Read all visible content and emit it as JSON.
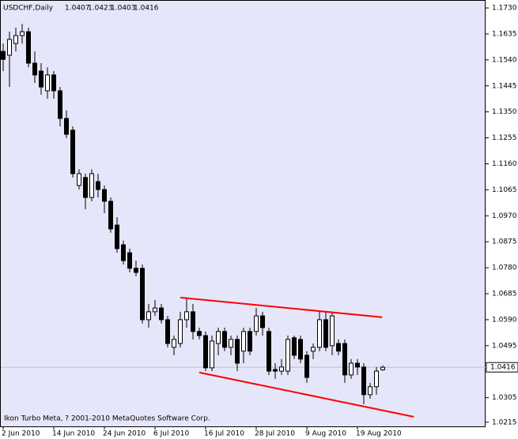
{
  "chart_data": {
    "type": "candlestick",
    "title": "USDCHF,Daily",
    "header_values": [
      1.0407,
      1.0423,
      1.0403,
      1.0416
    ],
    "footer": "Ikon Turbo Meta, ? 2001-2010 MetaQuotes Software Corp.",
    "categories": [
      "2 Jun 2010",
      null,
      null,
      null,
      null,
      null,
      null,
      null,
      "14 Jun 2010",
      null,
      null,
      null,
      null,
      null,
      null,
      null,
      "24 Jun 2010",
      null,
      null,
      null,
      null,
      null,
      null,
      null,
      "6 Jul 2010",
      null,
      null,
      null,
      null,
      null,
      null,
      null,
      "16 Jul 2010",
      null,
      null,
      null,
      null,
      null,
      null,
      null,
      "28 Jul 2010",
      null,
      null,
      null,
      null,
      null,
      null,
      null,
      "9 Aug 2010",
      null,
      null,
      null,
      null,
      null,
      null,
      null,
      "19 Aug 2010",
      null,
      null,
      null,
      null
    ],
    "open": [
      1.1571,
      1.1557,
      1.16,
      1.1629,
      1.1643,
      1.1528,
      1.1499,
      1.1427,
      1.1485,
      1.1427,
      1.1326,
      1.1283,
      1.1081,
      1.111,
      1.1037,
      1.1095,
      1.1066,
      1.1023,
      1.0936,
      1.0864,
      1.0835,
      1.0778,
      1.0778,
      1.059,
      1.0619,
      1.0633,
      1.059,
      1.0489,
      1.0503,
      1.059,
      1.0619,
      1.0547,
      1.0532,
      1.0414,
      1.0503,
      1.0547,
      1.0489,
      1.0518,
      1.0475,
      1.0547,
      1.0547,
      1.0604,
      1.0547,
      1.0408,
      1.0402,
      1.0402,
      1.0524,
      1.0518,
      1.046,
      1.0475,
      1.0489,
      1.059,
      1.0495,
      1.0503,
      1.0503,
      1.0388,
      1.0431,
      1.0417,
      1.0316,
      1.0345,
      1.0407
    ],
    "high": [
      1.16,
      1.1643,
      1.1658,
      1.1672,
      1.1658,
      1.1571,
      1.1528,
      1.1513,
      1.1499,
      1.1441,
      1.1355,
      1.1297,
      1.114,
      1.1124,
      1.114,
      1.1124,
      1.1081,
      1.1037,
      1.0965,
      1.0879,
      1.085,
      1.0806,
      1.0792,
      1.0648,
      1.0662,
      1.0648,
      1.0604,
      1.0532,
      1.0619,
      1.0671,
      1.0648,
      1.0561,
      1.0547,
      1.0532,
      1.0561,
      1.0561,
      1.0532,
      1.0532,
      1.0561,
      1.0561,
      1.0633,
      1.0619,
      1.0561,
      1.0431,
      1.0446,
      1.0532,
      1.0532,
      1.0532,
      1.0475,
      1.0503,
      1.0619,
      1.0619,
      1.0619,
      1.0518,
      1.0518,
      1.0446,
      1.0446,
      1.0431,
      1.0359,
      1.0417,
      1.0423
    ],
    "low": [
      1.1499,
      1.1441,
      1.1571,
      1.16,
      1.1513,
      1.1456,
      1.1413,
      1.1398,
      1.1398,
      1.1297,
      1.1254,
      1.111,
      1.1066,
      1.0994,
      1.1023,
      1.1037,
      1.098,
      1.0908,
      1.0835,
      1.0792,
      1.0763,
      1.0749,
      1.0576,
      1.0561,
      1.0604,
      1.0576,
      1.0489,
      1.046,
      1.0489,
      1.0561,
      1.0518,
      1.0518,
      1.0402,
      1.0402,
      1.046,
      1.0475,
      1.046,
      1.0402,
      1.0431,
      1.046,
      1.0532,
      1.0532,
      1.0388,
      1.0374,
      1.0388,
      1.0388,
      1.0446,
      1.0431,
      1.0359,
      1.0446,
      1.0475,
      1.0475,
      1.046,
      1.046,
      1.0359,
      1.0374,
      1.0388,
      1.0281,
      1.0301,
      1.0316,
      1.0403
    ],
    "close": [
      1.1542,
      1.1615,
      1.1629,
      1.1643,
      1.1528,
      1.1485,
      1.1441,
      1.1485,
      1.1427,
      1.1326,
      1.1268,
      1.1124,
      1.1124,
      1.1037,
      1.1124,
      1.1066,
      1.1023,
      1.0922,
      1.085,
      1.0806,
      1.0778,
      1.0763,
      1.059,
      1.0619,
      1.0633,
      1.059,
      1.0503,
      1.0518,
      1.059,
      1.0619,
      1.0547,
      1.0532,
      1.0414,
      1.0512,
      1.0547,
      1.0489,
      1.0518,
      1.0431,
      1.0547,
      1.0475,
      1.0604,
      1.0561,
      1.0402,
      1.0402,
      1.0417,
      1.0518,
      1.046,
      1.0446,
      1.0379,
      1.0489,
      1.059,
      1.0489,
      1.0604,
      1.0475,
      1.0388,
      1.0431,
      1.0417,
      1.0316,
      1.0345,
      1.0402,
      1.0416
    ],
    "up_color": "#ffffff",
    "down_color": "#000000",
    "wick_color": "#000000",
    "background": "#e6e6fa",
    "current_price": 1.0416,
    "trendlines": [
      {
        "color": "#ff0000",
        "x": [
          28,
          59.9
        ],
        "y": [
          1.0671,
          1.0599
        ]
      },
      {
        "color": "#ff0000",
        "x": [
          31,
          64.9
        ],
        "y": [
          1.0397,
          1.0235
        ]
      }
    ],
    "ylim": [
      1.02,
      1.1759
    ],
    "yticks": [
      {
        "value": 1.173,
        "label": "1.1730"
      },
      1.1635,
      {
        "value": 1.154,
        "label": "1.1540"
      },
      1.1445,
      {
        "value": 1.135,
        "label": "1.1350"
      },
      1.1255,
      {
        "value": 1.116,
        "label": "1.1160"
      },
      1.1065,
      {
        "value": 1.097,
        "label": "1.0970"
      },
      1.0875,
      {
        "value": 1.078,
        "label": "1.0780"
      },
      1.0685,
      {
        "value": 1.059,
        "label": "1.0590"
      },
      1.0495,
      1.0305,
      1.0215
    ]
  }
}
